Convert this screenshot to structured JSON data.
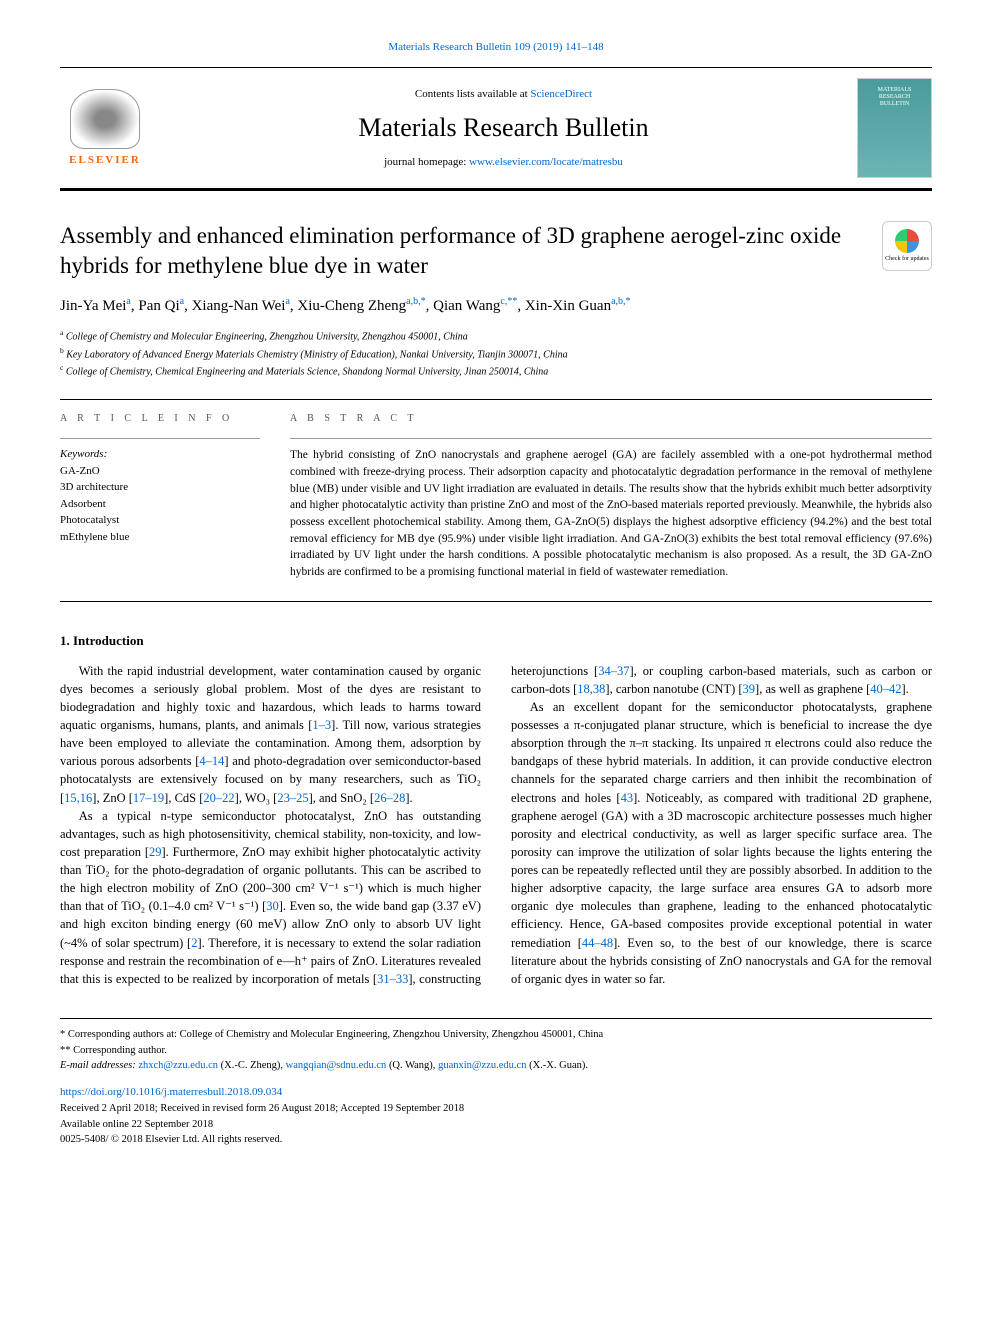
{
  "top_citation": {
    "journal": "Materials Research Bulletin",
    "issue": "109 (2019) 141–148"
  },
  "header": {
    "contents_prefix": "Contents lists available at ",
    "contents_link": "ScienceDirect",
    "journal_name": "Materials Research Bulletin",
    "homepage_prefix": "journal homepage: ",
    "homepage_url": "www.elsevier.com/locate/matresbu",
    "elsevier": "ELSEVIER",
    "cover_line1": "MATERIALS",
    "cover_line2": "RESEARCH",
    "cover_line3": "BULLETIN"
  },
  "check_updates": "Check for updates",
  "title": "Assembly and enhanced elimination performance of 3D graphene aerogel-zinc oxide hybrids for methylene blue dye in water",
  "authors_html": "Jin-Ya Mei<sup>a</sup>, Pan Qi<sup>a</sup>, Xiang-Nan Wei<sup>a</sup>, Xiu-Cheng Zheng<sup>a,b,*</sup>, Qian Wang<sup>c,**</sup>, Xin-Xin Guan<sup>a,b,*</sup>",
  "affiliations": {
    "a": "College of Chemistry and Molecular Engineering, Zhengzhou University, Zhengzhou 450001, China",
    "b": "Key Laboratory of Advanced Energy Materials Chemistry (Ministry of Education), Nankai University, Tianjin 300071, China",
    "c": "College of Chemistry, Chemical Engineering and Materials Science, Shandong Normal University, Jinan 250014, China"
  },
  "article_info": {
    "heading": "A R T I C L E  I N F O",
    "keywords_label": "Keywords:",
    "keywords": [
      "GA-ZnO",
      "3D architecture",
      "Adsorbent",
      "Photocatalyst",
      "mEthylene blue"
    ]
  },
  "abstract": {
    "heading": "A B S T R A C T",
    "text": "The hybrid consisting of ZnO nanocrystals and graphene aerogel (GA) are facilely assembled with a one-pot hydrothermal method combined with freeze-drying process. Their adsorption capacity and photocatalytic degradation performance in the removal of methylene blue (MB) under visible and UV light irradiation are evaluated in details. The results show that the hybrids exhibit much better adsorptivity and higher photocatalytic activity than pristine ZnO and most of the ZnO-based materials reported previously. Meanwhile, the hybrids also possess excellent photochemical stability. Among them, GA-ZnO(5) displays the highest adsorptive efficiency (94.2%) and the best total removal efficiency for MB dye (95.9%) under visible light irradiation. And GA-ZnO(3) exhibits the best total removal efficiency (97.6%) irradiated by UV light under the harsh conditions. A possible photocatalytic mechanism is also proposed. As a result, the 3D GA-ZnO hybrids are confirmed to be a promising functional material in field of wastewater remediation."
  },
  "intro": {
    "heading": "1. Introduction",
    "p1_pre": "With the rapid industrial development, water contamination caused by organic dyes becomes a seriously global problem. Most of the dyes are resistant to biodegradation and highly toxic and hazardous, which leads to harms toward aquatic organisms, humans, plants, and animals [",
    "p1_r1": "1–3",
    "p1_mid1": "]. Till now, various strategies have been employed to alleviate the contamination. Among them, adsorption by various porous adsorbents [",
    "p1_r2": "4–14",
    "p1_mid2": "] and photo-degradation over semiconductor-based photocatalysts are extensively focused on by many researchers, such as TiO₂ [",
    "p1_r3": "15,16",
    "p1_mid3": "], ZnO [",
    "p1_r4": "17–19",
    "p1_mid4": "], CdS [",
    "p1_r5": "20–22",
    "p1_mid5": "], WO₃ [",
    "p1_r6": "23–25",
    "p1_mid6": "], and SnO₂ [",
    "p1_r7": "26–28",
    "p1_end": "].",
    "p2_pre": "As a typical n-type semiconductor photocatalyst, ZnO has outstanding advantages, such as high photosensitivity, chemical stability, non-toxicity, and low-cost preparation [",
    "p2_r1": "29",
    "p2_mid1": "]. Furthermore, ZnO may exhibit higher photocatalytic activity than TiO₂ for the photo-degradation of organic pollutants. This can be ascribed to the high electron mobility of ZnO (200–300 cm² V⁻¹ s⁻¹) which is much higher than that of TiO₂ (0.1–4.0 cm² V⁻¹ s⁻¹) [",
    "p2_r2": "30",
    "p2_mid2": "]. Even so, the wide band gap (3.37 eV) and high exciton binding energy (60 meV) allow ZnO only to absorb UV light (~4% of solar spectrum) [",
    "p2_r3": "2",
    "p2_mid3": "]. Therefore, it is necessary to extend the solar radiation response and restrain the recombination of e—h⁺ pairs of ZnO. Literatures revealed that this is expected to be realized by incorporation of metals [",
    "p2_r4": "31–33",
    "p2_mid4": "], constructing heterojunctions [",
    "p2_r5": "34–37",
    "p2_mid5": "], or coupling carbon-based materials, such as carbon or carbon-dots [",
    "p2_r6": "18,38",
    "p2_mid6": "], carbon nanotube (CNT) [",
    "p2_r7": "39",
    "p2_mid7": "], as well as graphene [",
    "p2_r8": "40–42",
    "p2_end": "].",
    "p3_pre": "As an excellent dopant for the semiconductor photocatalysts, graphene possesses a π-conjugated planar structure, which is beneficial to increase the dye absorption through the π–π stacking. Its unpaired π electrons could also reduce the bandgaps of these hybrid materials. In addition, it can provide conductive electron channels for the separated charge carriers and then inhibit the recombination of electrons and holes [",
    "p3_r1": "43",
    "p3_mid1": "]. Noticeably, as compared with traditional 2D graphene, graphene aerogel (GA) with a 3D macroscopic architecture possesses much higher porosity and electrical conductivity, as well as larger specific surface area. The porosity can improve the utilization of solar lights because the lights entering the pores can be repeatedly reflected until they are possibly absorbed. In addition to the higher adsorptive capacity, the large surface area ensures GA to adsorb more organic dye molecules than graphene, leading to the enhanced photocatalytic efficiency. Hence, GA-based composites provide exceptional potential in water remediation [",
    "p3_r2": "44–48",
    "p3_end": "]. Even so, to the best of our knowledge, there is scarce literature about the hybrids consisting of ZnO nanocrystals and GA for the removal of organic dyes in water so far."
  },
  "footer": {
    "corr1": "* Corresponding authors at: College of Chemistry and Molecular Engineering, Zhengzhou University, Zhengzhou 450001, China",
    "corr2": "** Corresponding author.",
    "email_label": "E-mail addresses: ",
    "email1": "zhxch@zzu.edu.cn",
    "email1_name": " (X.-C. Zheng), ",
    "email2": "wangqian@sdnu.edu.cn",
    "email2_name": " (Q. Wang), ",
    "email3": "guanxin@zzu.edu.cn",
    "email3_name": " (X.-X. Guan).",
    "doi": "https://doi.org/10.1016/j.materresbull.2018.09.034",
    "received": "Received 2 April 2018; Received in revised form 26 August 2018; Accepted 19 September 2018",
    "available": "Available online 22 September 2018",
    "copyright": "0025-5408/ © 2018 Elsevier Ltd. All rights reserved."
  },
  "colors": {
    "link": "#0066cc",
    "elsevier_orange": "#ff6600",
    "cover_bg": "#4a9b9b"
  }
}
